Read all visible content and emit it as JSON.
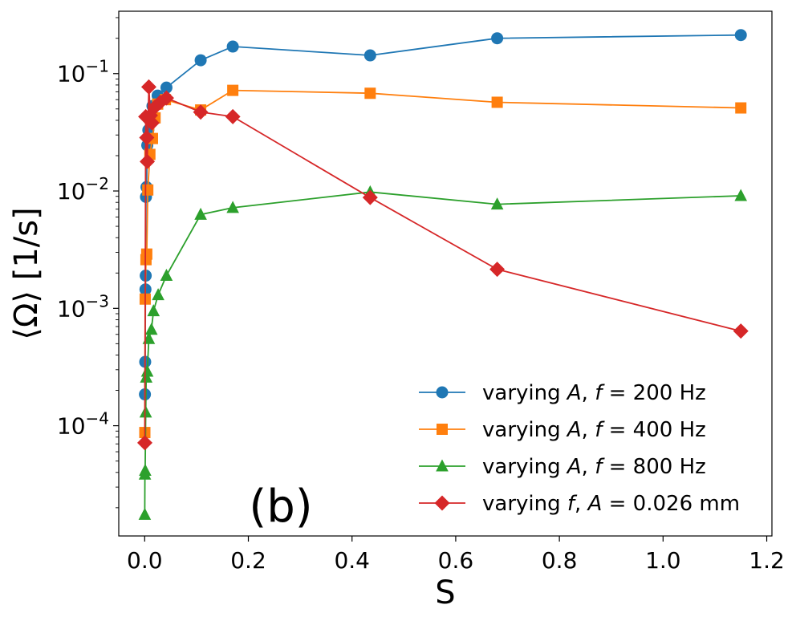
{
  "chart_data": {
    "type": "line",
    "panel_label": "(b)",
    "xlabel": "S",
    "ylabel": "⟨Ω⟩ [1/s]",
    "x_scale": "linear",
    "y_scale": "log",
    "xlim": [
      -0.05,
      1.21
    ],
    "ylim": [
      1.15e-05,
      0.34
    ],
    "x_ticks": [
      0.0,
      0.2,
      0.4,
      0.6,
      0.8,
      1.0,
      1.2
    ],
    "x_tick_labels": [
      "0.0",
      "0.2",
      "0.4",
      "0.6",
      "0.8",
      "1.0",
      "1.2"
    ],
    "y_ticks": [
      {
        "base": "10",
        "exp": "−4",
        "value": 0.0001
      },
      {
        "base": "10",
        "exp": "−3",
        "value": 0.001
      },
      {
        "base": "10",
        "exp": "−2",
        "value": 0.01
      },
      {
        "base": "10",
        "exp": "−1",
        "value": 0.1
      }
    ],
    "legend_position": "lower right",
    "series": [
      {
        "name": "varying A, f = 200 Hz",
        "legend": {
          "pre": "varying ",
          "var": "A",
          "mid": ", ",
          "var2": "f",
          "post": " = 200 Hz"
        },
        "color": "#1f77b4",
        "marker": "circle",
        "x": [
          0.0005,
          0.001,
          0.0015,
          0.002,
          0.0025,
          0.0035,
          0.005,
          0.007,
          0.01,
          0.015,
          0.025,
          0.042,
          0.108,
          0.17,
          0.435,
          0.68,
          1.15
        ],
        "y": [
          0.000185,
          0.00035,
          0.00145,
          0.0019,
          0.0089,
          0.0108,
          0.0245,
          0.033,
          0.041,
          0.053,
          0.065,
          0.076,
          0.13,
          0.17,
          0.143,
          0.2,
          0.213
        ]
      },
      {
        "name": "varying A, f = 400 Hz",
        "legend": {
          "pre": "varying ",
          "var": "A",
          "mid": ", ",
          "var2": "f",
          "post": " = 400 Hz"
        },
        "color": "#ff7f0e",
        "marker": "square",
        "x": [
          0.0003,
          0.001,
          0.0025,
          0.004,
          0.006,
          0.01,
          0.015,
          0.02,
          0.025,
          0.04,
          0.108,
          0.17,
          0.435,
          0.68,
          1.15
        ],
        "y": [
          8.75e-05,
          0.0012,
          0.0026,
          0.0029,
          0.0102,
          0.0205,
          0.028,
          0.042,
          0.055,
          0.06,
          0.049,
          0.072,
          0.068,
          0.057,
          0.051
        ]
      },
      {
        "name": "varying A, f = 800 Hz",
        "legend": {
          "pre": "varying ",
          "var": "A",
          "mid": ", ",
          "var2": "f",
          "post": " = 800 Hz"
        },
        "color": "#2ca02c",
        "marker": "triangle",
        "x": [
          0.0002,
          0.0005,
          0.001,
          0.002,
          0.003,
          0.005,
          0.008,
          0.013,
          0.017,
          0.026,
          0.042,
          0.108,
          0.17,
          0.435,
          0.68,
          1.15
        ],
        "y": [
          1.75e-05,
          3.85e-05,
          4.15e-05,
          0.00013,
          0.000258,
          0.00029,
          0.00055,
          0.00066,
          0.00095,
          0.0013,
          0.0019,
          0.0063,
          0.0072,
          0.0098,
          0.0077,
          0.0091
        ]
      },
      {
        "name": "varying f, A = 0.026 mm",
        "legend": {
          "pre": "varying ",
          "var": "f",
          "mid": ", ",
          "var2": "A",
          "post": " = 0.026 mm"
        },
        "color": "#d62728",
        "marker": "diamond",
        "x": [
          0.0003,
          0.002,
          0.004,
          0.005,
          0.008,
          0.011,
          0.014,
          0.02,
          0.03,
          0.042,
          0.108,
          0.17,
          0.435,
          0.68,
          1.15
        ],
        "y": [
          7.15e-05,
          0.043,
          0.0285,
          0.0178,
          0.077,
          0.044,
          0.038,
          0.052,
          0.057,
          0.062,
          0.047,
          0.043,
          0.0088,
          0.00215,
          0.00064
        ]
      }
    ]
  }
}
